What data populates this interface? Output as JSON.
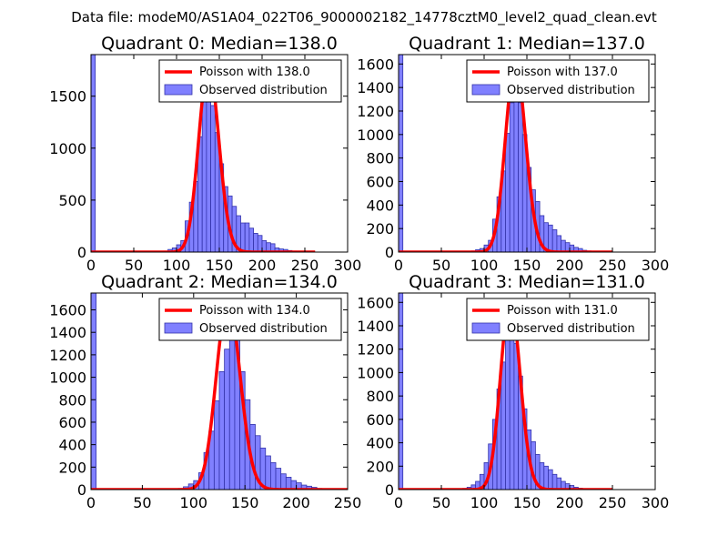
{
  "figure": {
    "suptitle": "Data file: modeM0/AS1A04_022T06_9000002182_14778cztM0_level2_quad_clean.evt",
    "colors": {
      "bar_fill": "#8080ff",
      "bar_edge": "#3333aa",
      "poisson_line": "#ff0000"
    }
  },
  "chart_data": [
    {
      "type": "bar",
      "title": "Quadrant 0: Median=138.0",
      "median": 138.0,
      "xlim": [
        0,
        300
      ],
      "ylim": [
        0,
        1900
      ],
      "xticks": [
        0,
        50,
        100,
        150,
        200,
        250,
        300
      ],
      "yticks": [
        0,
        500,
        1000,
        1500
      ],
      "bin_width": 5,
      "series": [
        {
          "name": "Poisson with 138.0",
          "kind": "line",
          "mean": 138.0,
          "peak": 1790,
          "x_range": [
            0,
            262
          ]
        },
        {
          "name": "Observed distribution",
          "kind": "histogram",
          "bins": [
            [
              0,
              1900
            ],
            [
              5,
              0
            ],
            [
              10,
              0
            ],
            [
              15,
              0
            ],
            [
              20,
              0
            ],
            [
              25,
              0
            ],
            [
              30,
              0
            ],
            [
              35,
              0
            ],
            [
              40,
              0
            ],
            [
              45,
              0
            ],
            [
              50,
              0
            ],
            [
              55,
              0
            ],
            [
              60,
              0
            ],
            [
              65,
              0
            ],
            [
              70,
              0
            ],
            [
              75,
              0
            ],
            [
              80,
              5
            ],
            [
              85,
              10
            ],
            [
              90,
              25
            ],
            [
              95,
              40
            ],
            [
              100,
              70
            ],
            [
              105,
              110
            ],
            [
              110,
              300
            ],
            [
              115,
              480
            ],
            [
              120,
              680
            ],
            [
              125,
              1110
            ],
            [
              130,
              1470
            ],
            [
              135,
              1520
            ],
            [
              140,
              1410
            ],
            [
              145,
              1150
            ],
            [
              150,
              850
            ],
            [
              155,
              630
            ],
            [
              160,
              540
            ],
            [
              165,
              440
            ],
            [
              170,
              350
            ],
            [
              175,
              280
            ],
            [
              180,
              280
            ],
            [
              185,
              230
            ],
            [
              190,
              180
            ],
            [
              195,
              160
            ],
            [
              200,
              110
            ],
            [
              205,
              90
            ],
            [
              210,
              80
            ],
            [
              215,
              40
            ],
            [
              220,
              30
            ],
            [
              225,
              25
            ],
            [
              230,
              15
            ],
            [
              235,
              10
            ],
            [
              240,
              5
            ],
            [
              245,
              3
            ],
            [
              250,
              2
            ],
            [
              255,
              1
            ],
            [
              260,
              0
            ]
          ]
        }
      ]
    },
    {
      "type": "bar",
      "title": "Quadrant 1: Median=137.0",
      "median": 137.0,
      "xlim": [
        0,
        300
      ],
      "ylim": [
        0,
        1680
      ],
      "xticks": [
        0,
        50,
        100,
        150,
        200,
        250,
        300
      ],
      "yticks": [
        0,
        200,
        400,
        600,
        800,
        1000,
        1200,
        1400,
        1600
      ],
      "bin_width": 5,
      "series": [
        {
          "name": "Poisson with 137.0",
          "kind": "line",
          "mean": 137.0,
          "peak": 1610,
          "x_range": [
            0,
            250
          ]
        },
        {
          "name": "Observed distribution",
          "kind": "histogram",
          "bins": [
            [
              0,
              1680
            ],
            [
              5,
              0
            ],
            [
              10,
              0
            ],
            [
              15,
              0
            ],
            [
              20,
              0
            ],
            [
              25,
              0
            ],
            [
              30,
              0
            ],
            [
              35,
              0
            ],
            [
              40,
              0
            ],
            [
              45,
              0
            ],
            [
              50,
              0
            ],
            [
              55,
              0
            ],
            [
              60,
              0
            ],
            [
              65,
              0
            ],
            [
              70,
              0
            ],
            [
              75,
              0
            ],
            [
              80,
              5
            ],
            [
              85,
              10
            ],
            [
              90,
              20
            ],
            [
              95,
              30
            ],
            [
              100,
              60
            ],
            [
              105,
              100
            ],
            [
              110,
              280
            ],
            [
              115,
              470
            ],
            [
              120,
              690
            ],
            [
              125,
              1010
            ],
            [
              130,
              1270
            ],
            [
              135,
              1340
            ],
            [
              140,
              1270
            ],
            [
              145,
              1000
            ],
            [
              150,
              720
            ],
            [
              155,
              530
            ],
            [
              160,
              430
            ],
            [
              165,
              310
            ],
            [
              170,
              250
            ],
            [
              175,
              230
            ],
            [
              180,
              190
            ],
            [
              185,
              140
            ],
            [
              190,
              100
            ],
            [
              195,
              80
            ],
            [
              200,
              60
            ],
            [
              205,
              40
            ],
            [
              210,
              30
            ],
            [
              215,
              15
            ],
            [
              220,
              10
            ],
            [
              225,
              5
            ],
            [
              230,
              3
            ],
            [
              235,
              2
            ],
            [
              240,
              1
            ],
            [
              245,
              0
            ]
          ]
        }
      ]
    },
    {
      "type": "bar",
      "title": "Quadrant 2: Median=134.0",
      "median": 134.0,
      "xlim": [
        0,
        250
      ],
      "ylim": [
        0,
        1750
      ],
      "xticks": [
        0,
        50,
        100,
        150,
        200,
        250
      ],
      "yticks": [
        0,
        200,
        400,
        600,
        800,
        1000,
        1200,
        1400,
        1600
      ],
      "bin_width": 5,
      "series": [
        {
          "name": "Poisson with 134.0",
          "kind": "line",
          "mean": 134.0,
          "peak": 1680,
          "x_range": [
            0,
            250
          ]
        },
        {
          "name": "Observed distribution",
          "kind": "histogram",
          "bins": [
            [
              0,
              1750
            ],
            [
              5,
              0
            ],
            [
              10,
              0
            ],
            [
              15,
              0
            ],
            [
              20,
              0
            ],
            [
              25,
              0
            ],
            [
              30,
              0
            ],
            [
              35,
              0
            ],
            [
              40,
              0
            ],
            [
              45,
              0
            ],
            [
              50,
              0
            ],
            [
              55,
              0
            ],
            [
              60,
              0
            ],
            [
              65,
              0
            ],
            [
              70,
              0
            ],
            [
              75,
              0
            ],
            [
              80,
              5
            ],
            [
              85,
              10
            ],
            [
              90,
              25
            ],
            [
              95,
              50
            ],
            [
              100,
              80
            ],
            [
              105,
              150
            ],
            [
              110,
              330
            ],
            [
              115,
              520
            ],
            [
              120,
              790
            ],
            [
              125,
              1050
            ],
            [
              130,
              1250
            ],
            [
              135,
              1410
            ],
            [
              140,
              1340
            ],
            [
              145,
              1050
            ],
            [
              150,
              800
            ],
            [
              155,
              580
            ],
            [
              160,
              480
            ],
            [
              165,
              370
            ],
            [
              170,
              300
            ],
            [
              175,
              240
            ],
            [
              180,
              190
            ],
            [
              185,
              140
            ],
            [
              190,
              110
            ],
            [
              195,
              80
            ],
            [
              200,
              60
            ],
            [
              205,
              40
            ],
            [
              210,
              30
            ],
            [
              215,
              20
            ],
            [
              220,
              10
            ],
            [
              225,
              5
            ],
            [
              230,
              3
            ],
            [
              235,
              2
            ],
            [
              240,
              1
            ],
            [
              245,
              0
            ]
          ]
        }
      ]
    },
    {
      "type": "bar",
      "title": "Quadrant 3: Median=131.0",
      "median": 131.0,
      "xlim": [
        0,
        300
      ],
      "ylim": [
        0,
        1680
      ],
      "xticks": [
        0,
        50,
        100,
        150,
        200,
        250,
        300
      ],
      "yticks": [
        0,
        200,
        400,
        600,
        800,
        1000,
        1200,
        1400,
        1600
      ],
      "bin_width": 5,
      "series": [
        {
          "name": "Poisson with 131.0",
          "kind": "line",
          "mean": 131.0,
          "peak": 1620,
          "x_range": [
            0,
            250
          ]
        },
        {
          "name": "Observed distribution",
          "kind": "histogram",
          "bins": [
            [
              0,
              1680
            ],
            [
              5,
              0
            ],
            [
              10,
              0
            ],
            [
              15,
              0
            ],
            [
              20,
              0
            ],
            [
              25,
              0
            ],
            [
              30,
              0
            ],
            [
              35,
              0
            ],
            [
              40,
              0
            ],
            [
              45,
              0
            ],
            [
              50,
              0
            ],
            [
              55,
              0
            ],
            [
              60,
              0
            ],
            [
              65,
              0
            ],
            [
              70,
              5
            ],
            [
              75,
              10
            ],
            [
              80,
              20
            ],
            [
              85,
              40
            ],
            [
              90,
              70
            ],
            [
              95,
              130
            ],
            [
              100,
              230
            ],
            [
              105,
              390
            ],
            [
              110,
              600
            ],
            [
              115,
              860
            ],
            [
              120,
              1090
            ],
            [
              125,
              1280
            ],
            [
              130,
              1370
            ],
            [
              135,
              1250
            ],
            [
              140,
              970
            ],
            [
              145,
              690
            ],
            [
              150,
              510
            ],
            [
              155,
              410
            ],
            [
              160,
              300
            ],
            [
              165,
              230
            ],
            [
              170,
              200
            ],
            [
              175,
              170
            ],
            [
              180,
              130
            ],
            [
              185,
              100
            ],
            [
              190,
              70
            ],
            [
              195,
              50
            ],
            [
              200,
              35
            ],
            [
              205,
              20
            ],
            [
              210,
              12
            ],
            [
              215,
              6
            ],
            [
              220,
              3
            ],
            [
              225,
              2
            ],
            [
              230,
              1
            ],
            [
              235,
              0
            ]
          ]
        }
      ]
    }
  ]
}
